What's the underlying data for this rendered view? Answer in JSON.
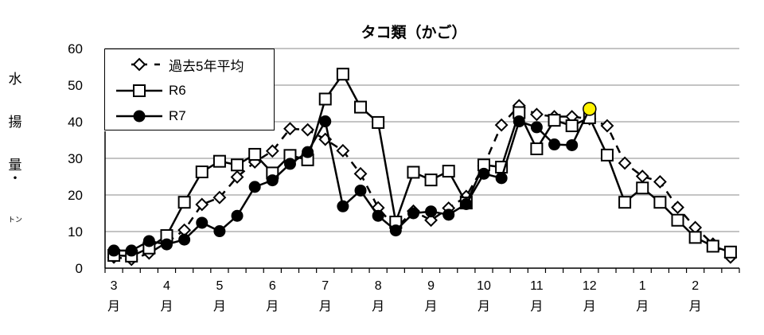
{
  "chart_data": {
    "type": "line",
    "title": "タコ類（かご）",
    "xlabel": "",
    "ylabel": "水揚量・トン",
    "ylim": [
      0,
      60
    ],
    "yticks": [
      0,
      10,
      20,
      30,
      40,
      50,
      60
    ],
    "grid": true,
    "legend_position": "upper-left",
    "x_tick_labels": [
      {
        "num": "3",
        "unit": "月"
      },
      {
        "num": "4",
        "unit": "月"
      },
      {
        "num": "5",
        "unit": "月"
      },
      {
        "num": "6",
        "unit": "月"
      },
      {
        "num": "7",
        "unit": "月"
      },
      {
        "num": "8",
        "unit": "月"
      },
      {
        "num": "9",
        "unit": "月"
      },
      {
        "num": "10",
        "unit": "月"
      },
      {
        "num": "11",
        "unit": "月"
      },
      {
        "num": "12",
        "unit": "月"
      },
      {
        "num": "1",
        "unit": "月"
      },
      {
        "num": "2",
        "unit": "月"
      }
    ],
    "x_note": "36 points: 3 ten-day periods (上旬/中旬/下旬) per month, March to February",
    "series": [
      {
        "name": "過去5年平均",
        "style": "dashed",
        "marker": "diamond-open",
        "values": [
          3.0,
          2.4,
          4.1,
          7.0,
          10.4,
          17.4,
          19.3,
          24.9,
          29.0,
          32.0,
          38.1,
          37.8,
          35.2,
          32.1,
          25.8,
          16.5,
          10.9,
          15.6,
          13.1,
          16.4,
          19.6,
          28.0,
          39.1,
          44.4,
          42.0,
          41.4,
          41.4,
          40.8,
          38.9,
          28.7,
          25.1,
          23.6,
          16.6,
          11.1,
          6.6,
          3.0
        ]
      },
      {
        "name": "R6",
        "style": "solid",
        "marker": "square-open",
        "values": [
          3.5,
          3.3,
          5.5,
          8.9,
          18.0,
          26.3,
          29.2,
          28.2,
          31.1,
          26.0,
          30.8,
          29.6,
          46.2,
          53.0,
          44.0,
          39.8,
          12.6,
          26.2,
          24.1,
          26.5,
          17.8,
          28.2,
          27.6,
          42.5,
          32.6,
          40.4,
          38.9,
          41.1,
          30.9,
          18.0,
          21.9,
          18.0,
          13.1,
          8.4,
          6.0,
          4.4
        ]
      },
      {
        "name": "R7",
        "style": "solid",
        "marker": "circle-filled",
        "values": [
          4.8,
          4.8,
          7.4,
          6.5,
          7.8,
          12.4,
          10.1,
          14.3,
          22.2,
          24.0,
          28.5,
          31.7,
          40.1,
          16.9,
          21.2,
          14.3,
          10.3,
          15.0,
          15.5,
          14.6,
          17.5,
          25.8,
          24.6,
          40.1,
          38.5,
          33.8,
          33.6,
          43.5,
          null,
          null,
          null,
          null,
          null,
          null,
          null,
          null
        ],
        "highlight_last": {
          "index": 27,
          "color": "#FFF200"
        }
      }
    ]
  },
  "ylabel_chars": [
    "水",
    "揚",
    "量",
    "・",
    "トン"
  ],
  "colors": {
    "line": "#000000",
    "grid": "#B0B0B0",
    "highlight": "#FFF200"
  }
}
